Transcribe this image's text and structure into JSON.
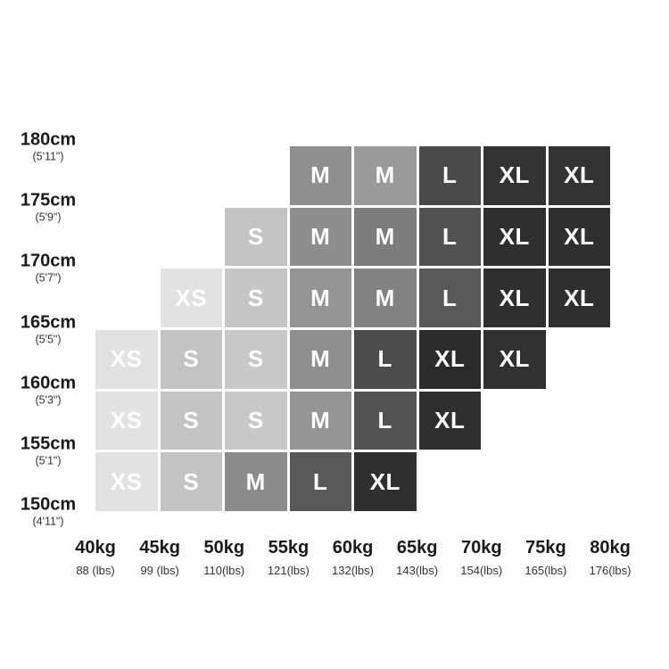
{
  "page": {
    "background": "#ffffff",
    "cell_text_color": "#ffffff",
    "label_color": "#1a1a1a",
    "sublabel_color": "#333333"
  },
  "chart_data": {
    "type": "heatmap",
    "description": "Clothing size chart grid: recommended size (XS-XL) by body height (rows) and weight (columns)",
    "legend_position": "none",
    "grid": {
      "rows": 6,
      "cols": 8
    },
    "y_axis": {
      "unit": "cm",
      "labels": [
        {
          "cm": "180cm",
          "imperial": "(5'11\")"
        },
        {
          "cm": "175cm",
          "imperial": "(5'9\")"
        },
        {
          "cm": "170cm",
          "imperial": "(5'7\")"
        },
        {
          "cm": "165cm",
          "imperial": "(5'5\")"
        },
        {
          "cm": "160cm",
          "imperial": "(5'3\")"
        },
        {
          "cm": "155cm",
          "imperial": "(5'1\")"
        },
        {
          "cm": "150cm",
          "imperial": "(4'11\")"
        }
      ]
    },
    "x_axis": {
      "unit": "kg",
      "labels": [
        {
          "kg": "40kg",
          "lbs": "88 (lbs)"
        },
        {
          "kg": "45kg",
          "lbs": "99 (lbs)"
        },
        {
          "kg": "50kg",
          "lbs": "110(lbs)"
        },
        {
          "kg": "55kg",
          "lbs": "121(lbs)"
        },
        {
          "kg": "60kg",
          "lbs": "132(lbs)"
        },
        {
          "kg": "65kg",
          "lbs": "143(lbs)"
        },
        {
          "kg": "70kg",
          "lbs": "154(lbs)"
        },
        {
          "kg": "75kg",
          "lbs": "165(lbs)"
        },
        {
          "kg": "80kg",
          "lbs": "176(lbs)"
        }
      ]
    },
    "sizes": [
      "XS",
      "S",
      "M",
      "L",
      "XL"
    ],
    "size_colors": {
      "XS": "#e2e2e2",
      "S": "#c4c4c4",
      "M": "#8f8f8f",
      "L": "#525252",
      "XL": "#2f2f2f"
    },
    "cells": [
      {
        "row": 1,
        "col": 4,
        "size": "M",
        "color": "#8f8f8f"
      },
      {
        "row": 1,
        "col": 5,
        "size": "M",
        "color": "#9a9a9a"
      },
      {
        "row": 1,
        "col": 6,
        "size": "L",
        "color": "#4a4a4a"
      },
      {
        "row": 1,
        "col": 7,
        "size": "XL",
        "color": "#333333"
      },
      {
        "row": 1,
        "col": 8,
        "size": "XL",
        "color": "#333333"
      },
      {
        "row": 2,
        "col": 3,
        "size": "S",
        "color": "#c3c3c3"
      },
      {
        "row": 2,
        "col": 4,
        "size": "M",
        "color": "#8e8e8e"
      },
      {
        "row": 2,
        "col": 5,
        "size": "M",
        "color": "#7d7d7d"
      },
      {
        "row": 2,
        "col": 6,
        "size": "L",
        "color": "#525252"
      },
      {
        "row": 2,
        "col": 7,
        "size": "XL",
        "color": "#2f2f2f"
      },
      {
        "row": 2,
        "col": 8,
        "size": "XL",
        "color": "#2f2f2f"
      },
      {
        "row": 3,
        "col": 2,
        "size": "XS",
        "color": "#e2e2e2"
      },
      {
        "row": 3,
        "col": 3,
        "size": "S",
        "color": "#c6c6c6"
      },
      {
        "row": 3,
        "col": 4,
        "size": "M",
        "color": "#959595"
      },
      {
        "row": 3,
        "col": 5,
        "size": "M",
        "color": "#828282"
      },
      {
        "row": 3,
        "col": 6,
        "size": "L",
        "color": "#585858"
      },
      {
        "row": 3,
        "col": 7,
        "size": "XL",
        "color": "#2f2f2f"
      },
      {
        "row": 3,
        "col": 8,
        "size": "XL",
        "color": "#2f2f2f"
      },
      {
        "row": 4,
        "col": 1,
        "size": "XS",
        "color": "#e2e2e2"
      },
      {
        "row": 4,
        "col": 2,
        "size": "S",
        "color": "#c3c3c3"
      },
      {
        "row": 4,
        "col": 3,
        "size": "S",
        "color": "#c8c8c8"
      },
      {
        "row": 4,
        "col": 4,
        "size": "M",
        "color": "#8f8f8f"
      },
      {
        "row": 4,
        "col": 5,
        "size": "L",
        "color": "#4c4c4c"
      },
      {
        "row": 4,
        "col": 6,
        "size": "XL",
        "color": "#2b2b2b"
      },
      {
        "row": 4,
        "col": 7,
        "size": "XL",
        "color": "#313131"
      },
      {
        "row": 5,
        "col": 1,
        "size": "XS",
        "color": "#e2e2e2"
      },
      {
        "row": 5,
        "col": 2,
        "size": "S",
        "color": "#c3c3c3"
      },
      {
        "row": 5,
        "col": 3,
        "size": "S",
        "color": "#c8c8c8"
      },
      {
        "row": 5,
        "col": 4,
        "size": "M",
        "color": "#959595"
      },
      {
        "row": 5,
        "col": 5,
        "size": "L",
        "color": "#535353"
      },
      {
        "row": 5,
        "col": 6,
        "size": "XL",
        "color": "#2f2f2f"
      },
      {
        "row": 6,
        "col": 1,
        "size": "XS",
        "color": "#e2e2e2"
      },
      {
        "row": 6,
        "col": 2,
        "size": "S",
        "color": "#c3c3c3"
      },
      {
        "row": 6,
        "col": 3,
        "size": "M",
        "color": "#8b8b8b"
      },
      {
        "row": 6,
        "col": 4,
        "size": "L",
        "color": "#585858"
      },
      {
        "row": 6,
        "col": 5,
        "size": "XL",
        "color": "#2f2f2f"
      }
    ]
  }
}
